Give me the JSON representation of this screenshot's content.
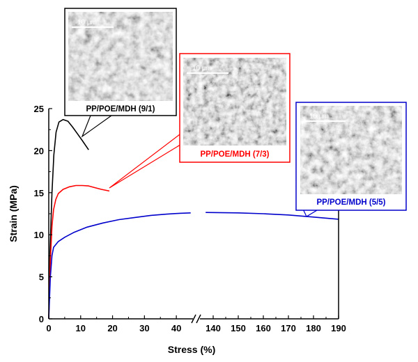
{
  "chart_data": {
    "type": "line",
    "xlabel": "Stress (%)",
    "ylabel": "Strain (MPa)",
    "x_segments": [
      {
        "range": [
          0,
          45
        ],
        "ticks": [
          0,
          10,
          20,
          30,
          40
        ]
      },
      {
        "range": [
          135,
          190
        ],
        "ticks": [
          140,
          150,
          160,
          170,
          180,
          190
        ]
      }
    ],
    "axis_break": "//",
    "ylim": [
      0,
      25
    ],
    "yticks": [
      0,
      5,
      10,
      15,
      20,
      25
    ],
    "grid": false,
    "series": [
      {
        "name": "PP/POE/MDH (9/1)",
        "color": "#000000",
        "points": [
          [
            0,
            0
          ],
          [
            0.4,
            8
          ],
          [
            1,
            15
          ],
          [
            1.6,
            19.5
          ],
          [
            2.3,
            22.2
          ],
          [
            3.2,
            23.4
          ],
          [
            4.5,
            23.7
          ],
          [
            6,
            23.5
          ],
          [
            7.5,
            22.8
          ],
          [
            9,
            22
          ],
          [
            10.5,
            21.2
          ],
          [
            12.5,
            20.1
          ]
        ]
      },
      {
        "name": "PP/POE/MDH (7/3)",
        "color": "#ff0000",
        "points": [
          [
            0,
            0
          ],
          [
            0.5,
            7
          ],
          [
            1,
            11
          ],
          [
            1.5,
            13
          ],
          [
            2.2,
            14.2
          ],
          [
            3,
            14.9
          ],
          [
            4.5,
            15.4
          ],
          [
            6.5,
            15.7
          ],
          [
            8.5,
            15.85
          ],
          [
            10.5,
            15.85
          ],
          [
            12.5,
            15.8
          ],
          [
            14.5,
            15.6
          ],
          [
            16.5,
            15.4
          ],
          [
            19,
            15.2
          ]
        ]
      },
      {
        "name": "PP/POE/MDH (5/5)",
        "color": "#0000cc",
        "points": [
          [
            0,
            0
          ],
          [
            0.5,
            5
          ],
          [
            1,
            7.5
          ],
          [
            1.5,
            8.5
          ],
          [
            3,
            9.2
          ],
          [
            5,
            9.7
          ],
          [
            8,
            10.3
          ],
          [
            12,
            10.9
          ],
          [
            17,
            11.4
          ],
          [
            22,
            11.8
          ],
          [
            27,
            12.05
          ],
          [
            32,
            12.3
          ],
          [
            37,
            12.45
          ],
          [
            41,
            12.55
          ],
          [
            44.5,
            12.6
          ],
          [
            137,
            12.65
          ],
          [
            150,
            12.6
          ],
          [
            160,
            12.5
          ],
          [
            170,
            12.35
          ],
          [
            180,
            12.1
          ],
          [
            190,
            11.85
          ]
        ]
      }
    ],
    "insets": [
      {
        "label": "PP/POE/MDH (9/1)",
        "scale_bar": "10 µm",
        "color": "#000000",
        "image": "sem-micrograph"
      },
      {
        "label": "PP/POE/MDH (7/3)",
        "scale_bar": "10 µm",
        "color": "#ff0000",
        "image": "sem-micrograph"
      },
      {
        "label": "PP/POE/MDH (5/5)",
        "scale_bar": "10 µm",
        "color": "#0000cc",
        "image": "sem-micrograph"
      }
    ]
  }
}
